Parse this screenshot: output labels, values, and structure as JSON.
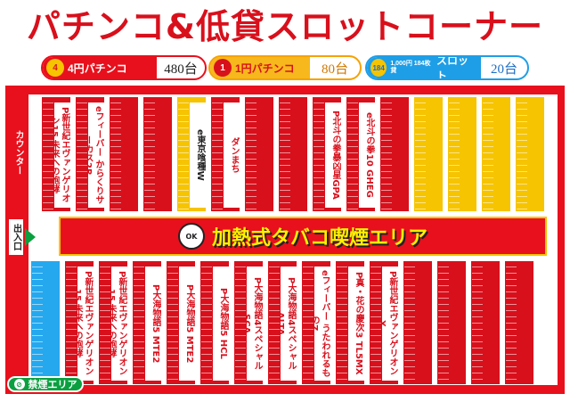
{
  "title": "パチンコ&低貸スロットコーナー",
  "legend": [
    {
      "badge": "4",
      "label": "4円パチンコ",
      "count": "480台",
      "color": "#e8101c"
    },
    {
      "badge": "1",
      "label": "1円パチンコ",
      "count": "80台",
      "color": "#f6b81c"
    },
    {
      "badge": "184",
      "small": "1,000円\n184枚貸",
      "label": "スロット",
      "count": "20台",
      "color": "#1e9ee6"
    }
  ],
  "counter_label": "カウンター",
  "entrance_label": "出入口",
  "smoke_area": {
    "ok_label": "OK",
    "text": "加熱式タバコ喫煙エリア"
  },
  "no_smoke_area": "禁煙エリア",
  "machines_top": [
    {
      "label": "P新世紀エヴァンゲリオン15 未来への咆哮",
      "color": "red"
    },
    {
      "label": "eフィーバー からくりサーカス2R",
      "color": "red"
    },
    {
      "label": "",
      "color": "red"
    },
    {
      "label": "",
      "color": "red"
    },
    {
      "label": "e東京喰種W",
      "color": "yellow"
    },
    {
      "label": "ダンまち",
      "color": "red"
    },
    {
      "label": "",
      "color": "red"
    },
    {
      "label": "",
      "color": "red"
    },
    {
      "label": "P北斗の拳暴凶星GPA",
      "color": "red"
    },
    {
      "label": "e北斗の拳10 GHEG",
      "color": "red"
    },
    {
      "label": "",
      "color": "red"
    },
    {
      "label": "",
      "color": "yellow"
    },
    {
      "label": "",
      "color": "yellow"
    },
    {
      "label": "",
      "color": "yellow"
    },
    {
      "label": "",
      "color": "yellow"
    }
  ],
  "machines_bottom": [
    {
      "label": "",
      "color": "blue"
    },
    {
      "label": "P新世紀エヴァンゲリオン15 未来への咆哮",
      "color": "red"
    },
    {
      "label": "P新世紀エヴァンゲリオン15 未来への咆哮",
      "color": "red"
    },
    {
      "label": "P大海物語5 MTE2",
      "color": "red"
    },
    {
      "label": "P大海物語5 MTE2",
      "color": "red"
    },
    {
      "label": "P大海物語5 HCL",
      "color": "red"
    },
    {
      "label": "P大海物語4スペシャル SCA",
      "color": "red"
    },
    {
      "label": "P大海物語4スペシャル ALTA",
      "color": "red"
    },
    {
      "label": "eフィーバー うたわれるものZ",
      "color": "red"
    },
    {
      "label": "P真・花の慶次3 TL5MX",
      "color": "red"
    },
    {
      "label": "P新世紀エヴァンゲリオンX",
      "color": "red"
    },
    {
      "label": "",
      "color": "red"
    },
    {
      "label": "",
      "color": "red"
    },
    {
      "label": "",
      "color": "red"
    },
    {
      "label": "",
      "color": "red"
    }
  ]
}
